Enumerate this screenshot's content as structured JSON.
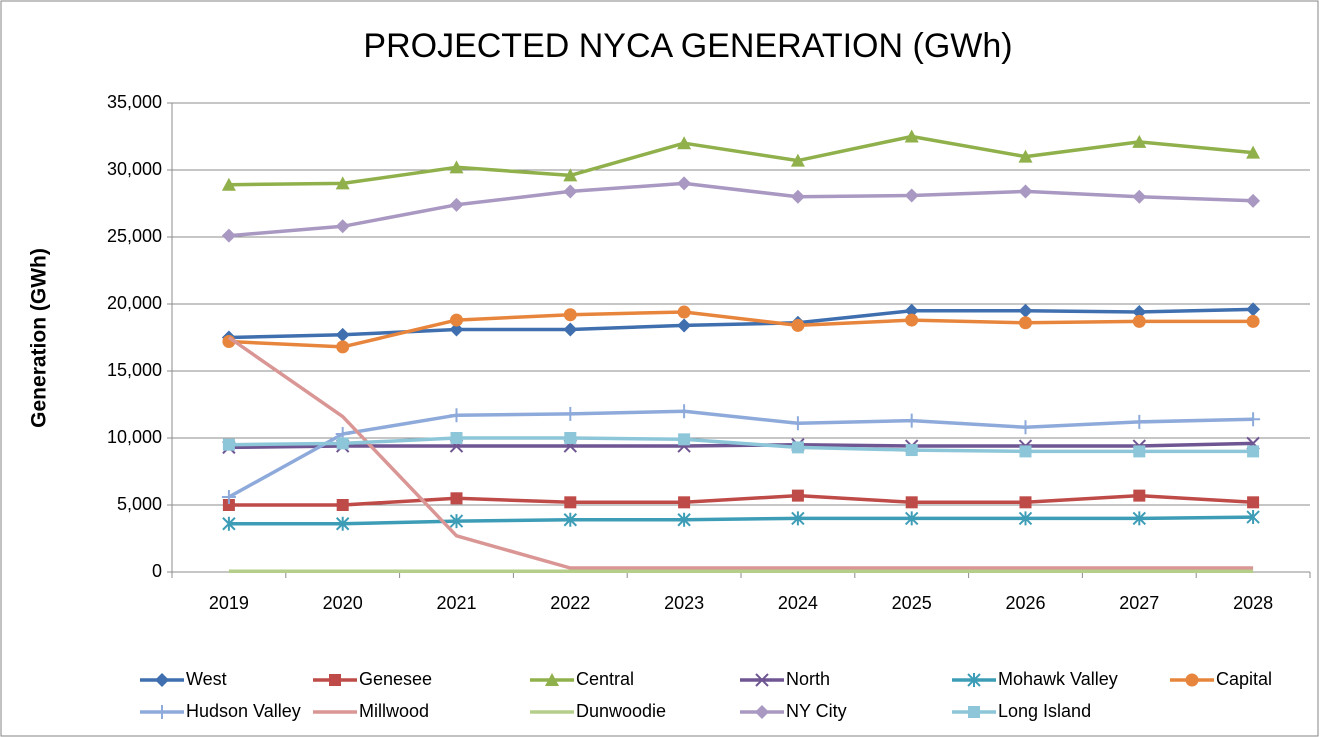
{
  "chart_data": {
    "type": "line",
    "title": "PROJECTED NYCA GENERATION (GWh)",
    "y_label": "Generation (GWh)",
    "categories": [
      "2019",
      "2020",
      "2021",
      "2022",
      "2023",
      "2024",
      "2025",
      "2026",
      "2027",
      "2028"
    ],
    "ylim": [
      0,
      35000
    ],
    "yticks": [
      0,
      {
        "value": 5000,
        "label": "5,000"
      },
      {
        "value": 10000,
        "label": "10,000"
      },
      {
        "value": 15000,
        "label": "15,000"
      },
      {
        "value": 20000,
        "label": "20,000"
      },
      {
        "value": 25000,
        "label": "25,000"
      },
      {
        "value": 30000,
        "label": "30,000"
      },
      {
        "value": 35000,
        "label": "35,000"
      }
    ],
    "grid": true,
    "legend": "bottom",
    "series": [
      {
        "name": "West",
        "color": "#3f6fae",
        "marker": "diamond",
        "values": [
          17500,
          17700,
          18100,
          18100,
          18400,
          18600,
          19500,
          19500,
          19400,
          19600
        ]
      },
      {
        "name": "Genesee",
        "color": "#be4b48",
        "marker": "square",
        "values": [
          5000,
          5000,
          5500,
          5200,
          5200,
          5700,
          5200,
          5200,
          5700,
          5200
        ]
      },
      {
        "name": "Central",
        "color": "#8fb04a",
        "marker": "triangle",
        "values": [
          28900,
          29000,
          30200,
          29600,
          32000,
          30700,
          32500,
          31000,
          32100,
          31300
        ]
      },
      {
        "name": "North",
        "color": "#6f5592",
        "marker": "x",
        "values": [
          9300,
          9400,
          9400,
          9400,
          9400,
          9500,
          9400,
          9400,
          9400,
          9600
        ]
      },
      {
        "name": "Mohawk Valley",
        "color": "#3d9db6",
        "marker": "star",
        "values": [
          3600,
          3600,
          3800,
          3900,
          3900,
          4000,
          4000,
          4000,
          4000,
          4100
        ]
      },
      {
        "name": "Capital",
        "color": "#e8853d",
        "marker": "circle",
        "values": [
          17200,
          16800,
          18800,
          19200,
          19400,
          18400,
          18800,
          18600,
          18700,
          18700
        ]
      },
      {
        "name": "Hudson Valley",
        "color": "#8eaadb",
        "marker": "plus",
        "values": [
          5600,
          10300,
          11700,
          11800,
          12000,
          11100,
          11300,
          10800,
          11200,
          11400
        ]
      },
      {
        "name": "Millwood",
        "color": "#d99694",
        "marker": "none",
        "values": [
          17500,
          11600,
          2700,
          300,
          300,
          300,
          300,
          300,
          300,
          300
        ]
      },
      {
        "name": "Dunwoodie",
        "color": "#b5cf8a",
        "marker": "none",
        "values": [
          50,
          50,
          50,
          50,
          50,
          50,
          50,
          50,
          50,
          50
        ]
      },
      {
        "name": "NY City",
        "color": "#a898c2",
        "marker": "diamond",
        "values": [
          25100,
          25800,
          27400,
          28400,
          29000,
          28000,
          28100,
          28400,
          28000,
          27700
        ]
      },
      {
        "name": "Long Island",
        "color": "#8cc6d8",
        "marker": "square",
        "values": [
          9500,
          9600,
          10000,
          10000,
          9900,
          9300,
          9100,
          9000,
          9000,
          9000
        ]
      }
    ]
  }
}
